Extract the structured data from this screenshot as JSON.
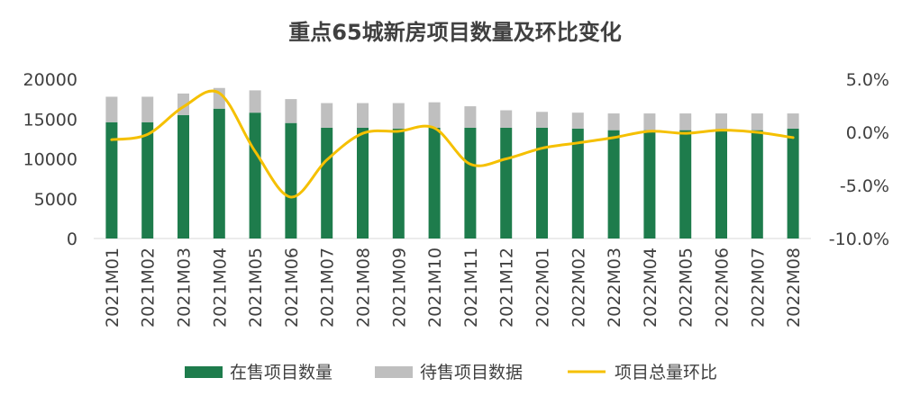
{
  "chart_data": {
    "type": "bar+line",
    "title": "重点65城新房项目数量及环比变化",
    "categories": [
      "2021M01",
      "2021M02",
      "2021M03",
      "2021M04",
      "2021M05",
      "2021M06",
      "2021M07",
      "2021M08",
      "2021M09",
      "2021M10",
      "2021M11",
      "2021M12",
      "2022M01",
      "2022M02",
      "2022M03",
      "2022M04",
      "2022M05",
      "2022M06",
      "2022M07",
      "2022M08"
    ],
    "series": [
      {
        "name": "在售项目数量",
        "kind": "bar",
        "stack": "total",
        "axis": "left",
        "color": "#1e7c4c",
        "values": [
          14600,
          14600,
          15500,
          16300,
          15800,
          14500,
          13900,
          13900,
          13800,
          13900,
          13900,
          13900,
          13900,
          13800,
          13600,
          13600,
          13600,
          13700,
          13600,
          13800
        ]
      },
      {
        "name": "待售项目数据",
        "kind": "bar",
        "stack": "total",
        "axis": "left",
        "color": "#bfbfbf",
        "values": [
          3200,
          3200,
          2700,
          2600,
          2800,
          3000,
          3100,
          3100,
          3200,
          3200,
          2700,
          2200,
          2000,
          2000,
          2100,
          2100,
          2100,
          2000,
          2100,
          1900
        ]
      },
      {
        "name": "项目总量环比",
        "kind": "line",
        "axis": "right",
        "color": "#f5c000",
        "values": [
          -0.7,
          -0.2,
          2.4,
          3.7,
          -1.8,
          -6.1,
          -2.6,
          -0.1,
          0.1,
          0.4,
          -3.0,
          -2.5,
          -1.5,
          -1.0,
          -0.5,
          0.1,
          -0.1,
          0.2,
          0.0,
          -0.5
        ]
      }
    ],
    "left_axis": {
      "min": 0,
      "max": 20000,
      "ticks": [
        "0",
        "5000",
        "10000",
        "15000",
        "20000"
      ],
      "tick_values": [
        0,
        5000,
        10000,
        15000,
        20000
      ]
    },
    "right_axis": {
      "min": -10.0,
      "max": 5.0,
      "ticks": [
        "-10.0%",
        "-5.0%",
        "0.0%",
        "5.0%"
      ],
      "tick_values": [
        -10,
        -5,
        0,
        5
      ]
    },
    "legend": {
      "position": "bottom",
      "items": [
        "在售项目数量",
        "待售项目数据",
        "项目总量环比"
      ]
    }
  }
}
